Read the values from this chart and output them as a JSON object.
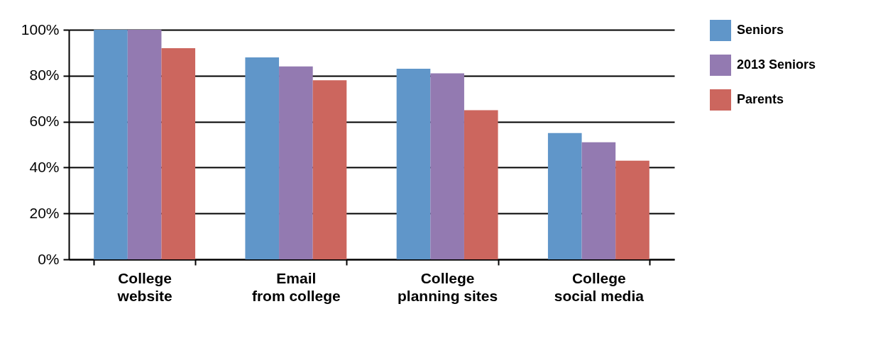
{
  "chart_data": {
    "type": "bar",
    "categories": [
      "College\nwebsite",
      "Email\nfrom college",
      "College\nplanning sites",
      "College\nsocial media"
    ],
    "series": [
      {
        "name": "Seniors",
        "color": "#6096c9",
        "values": [
          100,
          88,
          83,
          55
        ]
      },
      {
        "name": "2013 Seniors",
        "color": "#937ab1",
        "values": [
          100,
          84,
          81,
          51
        ]
      },
      {
        "name": "Parents",
        "color": "#cc665e",
        "values": [
          92,
          78,
          65,
          43
        ]
      }
    ],
    "ylim": [
      0,
      100
    ],
    "yticks": [
      {
        "value": 0,
        "label": "0%"
      },
      {
        "value": 20,
        "label": "20%"
      },
      {
        "value": 40,
        "label": "40%"
      },
      {
        "value": 60,
        "label": "60%"
      },
      {
        "value": 80,
        "label": "80%"
      },
      {
        "value": 100,
        "label": "100%"
      }
    ],
    "grid": "y",
    "legend": "top right"
  }
}
